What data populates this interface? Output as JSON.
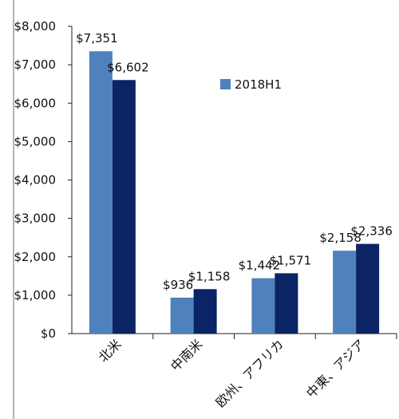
{
  "chart_data": {
    "type": "bar",
    "categories": [
      "北米",
      "中南米",
      "欧州、アフリカ",
      "中東、アジア"
    ],
    "series": [
      {
        "name": "2018H1",
        "values": [
          7351,
          936,
          1442,
          2158
        ],
        "labels": [
          "$7,351",
          "$936",
          "$1,442",
          "$2,158"
        ]
      },
      {
        "values": [
          6602,
          1158,
          1571,
          2336
        ],
        "labels": [
          "$6,602",
          "$1,158",
          "$1,571",
          "$2,336"
        ]
      }
    ],
    "ylim": [
      0,
      8000
    ],
    "yticks": [
      0,
      1000,
      2000,
      3000,
      4000,
      5000,
      6000,
      7000,
      8000
    ],
    "ytick_labels": [
      "$0",
      "$1,000",
      "$2,000",
      "$3,000",
      "$4,000",
      "$5,000",
      "$6,000",
      "$7,000",
      "$8,000"
    ],
    "legend": {
      "entries": [
        "2018H1"
      ],
      "placement": "top-right"
    },
    "grid": false,
    "colors": {
      "series1": "#4f81bd",
      "series2": "#0b2466"
    }
  }
}
